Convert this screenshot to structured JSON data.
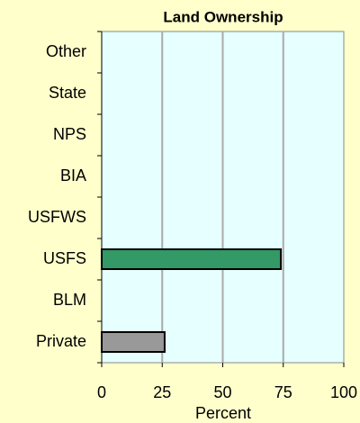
{
  "chart_data": {
    "type": "hbar",
    "title": "Land Ownership",
    "categories": [
      "Other",
      "State",
      "NPS",
      "BIA",
      "USFWS",
      "USFS",
      "BLM",
      "Private"
    ],
    "values": [
      0,
      0,
      0,
      0,
      0,
      74,
      0,
      26
    ],
    "bar_colors": {
      "USFS": "#339966",
      "Private": "#999999"
    },
    "x_label": "Percent",
    "xlim": [
      0,
      100
    ],
    "xticks": [
      0,
      25,
      50,
      75,
      100
    ],
    "grid": true
  }
}
